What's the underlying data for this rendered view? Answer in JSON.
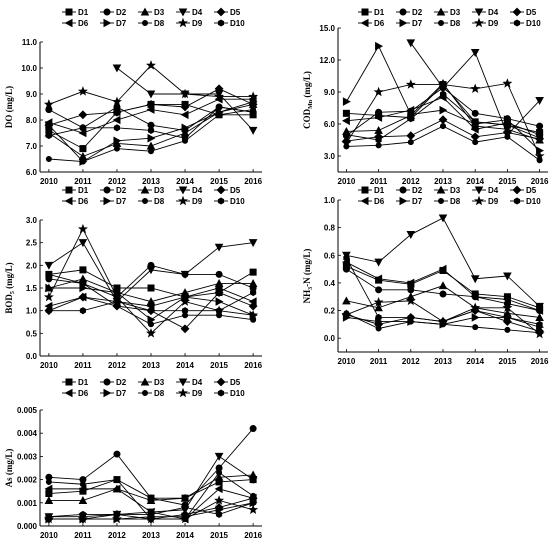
{
  "chart_data": [
    {
      "type": "line",
      "ylabel": "DO (mg/L)",
      "x": [
        2010,
        2011,
        2012,
        2013,
        2014,
        2015,
        2016
      ],
      "ylim": [
        6.0,
        11.0
      ],
      "yticks": [
        "6.0",
        "7.0",
        "8.0",
        "9.0",
        "10.0",
        "11.0"
      ],
      "legend_position": "top",
      "series": [
        {
          "name": "D1",
          "marker": "square",
          "values": [
            7.6,
            6.9,
            8.3,
            8.6,
            8.6,
            8.2,
            8.2
          ]
        },
        {
          "name": "D2",
          "marker": "circle",
          "values": [
            8.4,
            7.7,
            8.5,
            7.8,
            7.6,
            8.5,
            8.3
          ]
        },
        {
          "name": "D3",
          "marker": "triangle-up",
          "values": [
            7.5,
            6.6,
            7.1,
            7.0,
            7.5,
            8.3,
            8.6
          ]
        },
        {
          "name": "D4",
          "marker": "triangle-down",
          "values": [
            null,
            null,
            10.0,
            9.0,
            9.0,
            9.0,
            7.6
          ]
        },
        {
          "name": "D5",
          "marker": "diamond",
          "values": [
            7.8,
            8.2,
            8.3,
            8.6,
            8.5,
            9.2,
            8.6
          ]
        },
        {
          "name": "D6",
          "marker": "triangle-left",
          "values": [
            7.9,
            7.5,
            8.0,
            8.4,
            8.2,
            8.8,
            8.8
          ]
        },
        {
          "name": "D7",
          "marker": "triangle-right",
          "values": [
            7.8,
            6.4,
            7.2,
            7.3,
            7.7,
            8.3,
            8.7
          ]
        },
        {
          "name": "D8",
          "marker": "circle-small",
          "values": [
            6.5,
            6.4,
            6.9,
            6.8,
            7.2,
            8.2,
            8.4
          ]
        },
        {
          "name": "D9",
          "marker": "star",
          "values": [
            8.6,
            9.1,
            8.7,
            10.1,
            9.0,
            8.9,
            8.9
          ]
        },
        {
          "name": "D10",
          "marker": "hexagon",
          "values": [
            7.4,
            7.7,
            7.7,
            7.6,
            7.3,
            8.5,
            8.3
          ]
        }
      ]
    },
    {
      "type": "line",
      "ylabel": "COD_Mn (mg/L)",
      "x": [
        2010,
        2011,
        2012,
        2013,
        2014,
        2015,
        2016
      ],
      "ylim": [
        1.5,
        15.0
      ],
      "yticks": [
        "3.0",
        "6.0",
        "9.0",
        "12.0",
        "15.0"
      ],
      "legend_position": "top",
      "series": [
        {
          "name": "D1",
          "marker": "square",
          "values": [
            7.0,
            6.8,
            6.6,
            9.7,
            6.2,
            5.9,
            5.2
          ]
        },
        {
          "name": "D2",
          "marker": "circle",
          "values": [
            4.9,
            7.1,
            7.2,
            9.4,
            7.0,
            6.5,
            5.8
          ]
        },
        {
          "name": "D3",
          "marker": "triangle-up",
          "values": [
            5.3,
            5.4,
            6.8,
            9.8,
            5.8,
            5.5,
            4.5
          ]
        },
        {
          "name": "D4",
          "marker": "triangle-down",
          "values": [
            null,
            null,
            13.6,
            9.4,
            12.7,
            5.0,
            8.2
          ]
        },
        {
          "name": "D5",
          "marker": "diamond",
          "values": [
            4.4,
            4.8,
            4.9,
            6.4,
            4.8,
            5.2,
            4.6
          ]
        },
        {
          "name": "D6",
          "marker": "triangle-left",
          "values": [
            6.3,
            6.6,
            7.3,
            8.5,
            5.5,
            6.1,
            5.0
          ]
        },
        {
          "name": "D7",
          "marker": "triangle-right",
          "values": [
            8.1,
            13.3,
            6.9,
            7.3,
            6.0,
            6.4,
            3.5
          ]
        },
        {
          "name": "D8",
          "marker": "circle-small",
          "values": [
            3.9,
            4.0,
            4.3,
            5.8,
            4.3,
            4.8,
            2.6
          ]
        },
        {
          "name": "D9",
          "marker": "star",
          "values": [
            4.2,
            9.0,
            9.7,
            9.7,
            9.3,
            9.8,
            3.0
          ]
        },
        {
          "name": "D10",
          "marker": "hexagon",
          "values": [
            5.0,
            4.5,
            6.5,
            8.8,
            6.2,
            5.9,
            4.7
          ]
        }
      ]
    },
    {
      "type": "line",
      "ylabel": "BOD5 (mg/L)",
      "x": [
        2010,
        2011,
        2012,
        2013,
        2014,
        2015,
        2016
      ],
      "ylim": [
        0.0,
        3.0
      ],
      "yticks": [
        "0.0",
        "0.5",
        "1.0",
        "1.5",
        "2.0",
        "2.5",
        "3.0"
      ],
      "legend_position": "top",
      "series": [
        {
          "name": "D1",
          "marker": "square",
          "values": [
            1.8,
            1.9,
            1.5,
            1.5,
            1.3,
            1.4,
            1.85
          ]
        },
        {
          "name": "D2",
          "marker": "circle",
          "values": [
            1.7,
            1.6,
            1.3,
            2.0,
            1.8,
            1.8,
            1.5
          ]
        },
        {
          "name": "D3",
          "marker": "triangle-up",
          "values": [
            1.5,
            1.7,
            1.4,
            1.2,
            1.4,
            1.6,
            1.6
          ]
        },
        {
          "name": "D4",
          "marker": "triangle-down",
          "values": [
            2.0,
            2.5,
            1.2,
            1.9,
            1.8,
            2.4,
            2.5
          ]
        },
        {
          "name": "D5",
          "marker": "diamond",
          "values": [
            1.0,
            1.3,
            1.1,
            1.0,
            0.6,
            1.4,
            1.1
          ]
        },
        {
          "name": "D6",
          "marker": "triangle-left",
          "values": [
            1.1,
            1.3,
            1.2,
            1.1,
            1.3,
            1.5,
            1.2
          ]
        },
        {
          "name": "D7",
          "marker": "triangle-right",
          "values": [
            1.5,
            1.5,
            1.4,
            0.8,
            1.3,
            1.2,
            0.9
          ]
        },
        {
          "name": "D8",
          "marker": "circle-small",
          "values": [
            1.8,
            1.6,
            1.1,
            0.7,
            0.9,
            0.9,
            0.8
          ]
        },
        {
          "name": "D9",
          "marker": "star",
          "values": [
            1.3,
            2.8,
            1.3,
            0.5,
            1.2,
            1.0,
            0.9
          ]
        },
        {
          "name": "D10",
          "marker": "hexagon",
          "values": [
            1.0,
            1.0,
            1.2,
            1.0,
            1.0,
            1.0,
            1.4
          ]
        }
      ]
    },
    {
      "type": "line",
      "ylabel": "NH3-N (mg/L)",
      "x": [
        2010,
        2011,
        2012,
        2013,
        2014,
        2015,
        2016
      ],
      "ylim": [
        -0.1,
        1.0
      ],
      "yticks": [
        "0.0",
        "0.2",
        "0.4",
        "0.6",
        "0.8",
        "1.0"
      ],
      "legend_position": "top",
      "series": [
        {
          "name": "D1",
          "marker": "square",
          "values": [
            0.52,
            0.42,
            0.39,
            0.49,
            0.32,
            0.3,
            0.22
          ]
        },
        {
          "name": "D2",
          "marker": "circle",
          "values": [
            0.5,
            0.35,
            0.35,
            0.32,
            0.3,
            0.25,
            0.2
          ]
        },
        {
          "name": "D3",
          "marker": "triangle-up",
          "values": [
            0.27,
            0.22,
            0.3,
            0.38,
            0.22,
            0.18,
            0.15
          ]
        },
        {
          "name": "D4",
          "marker": "triangle-down",
          "values": [
            0.6,
            0.55,
            0.75,
            0.87,
            0.43,
            0.45,
            0.23
          ]
        },
        {
          "name": "D5",
          "marker": "diamond",
          "values": [
            0.17,
            0.1,
            0.15,
            0.12,
            0.2,
            0.12,
            0.05
          ]
        },
        {
          "name": "D6",
          "marker": "triangle-left",
          "values": [
            0.55,
            0.43,
            0.4,
            0.5,
            0.3,
            0.28,
            0.2
          ]
        },
        {
          "name": "D7",
          "marker": "triangle-right",
          "values": [
            0.15,
            0.12,
            0.12,
            0.1,
            0.15,
            0.15,
            0.08
          ]
        },
        {
          "name": "D8",
          "marker": "circle-small",
          "values": [
            0.18,
            0.07,
            0.12,
            0.1,
            0.08,
            0.06,
            0.04
          ]
        },
        {
          "name": "D9",
          "marker": "star",
          "values": [
            0.17,
            0.26,
            0.27,
            0.12,
            0.22,
            0.22,
            0.03
          ]
        },
        {
          "name": "D10",
          "marker": "hexagon",
          "values": [
            0.58,
            0.15,
            0.15,
            0.12,
            0.2,
            0.15,
            0.1
          ]
        }
      ]
    },
    {
      "type": "line",
      "ylabel": "As (mg/L)",
      "x": [
        2010,
        2011,
        2012,
        2013,
        2014,
        2015,
        2016
      ],
      "ylim": [
        0.0,
        0.005
      ],
      "yticks": [
        "0.000",
        "0.001",
        "0.002",
        "0.003",
        "0.004",
        "0.005"
      ],
      "legend_position": "top",
      "series": [
        {
          "name": "D1",
          "marker": "square",
          "values": [
            0.0014,
            0.0015,
            0.002,
            0.0012,
            0.0012,
            0.0019,
            0.002
          ]
        },
        {
          "name": "D2",
          "marker": "circle",
          "values": [
            0.0021,
            0.002,
            0.0031,
            0.0012,
            0.0009,
            0.0025,
            0.0042
          ]
        },
        {
          "name": "D3",
          "marker": "triangle-up",
          "values": [
            0.0011,
            0.0011,
            0.0016,
            0.0011,
            0.0012,
            0.0021,
            0.0022
          ]
        },
        {
          "name": "D4",
          "marker": "triangle-down",
          "values": [
            0.0004,
            0.0004,
            0.0005,
            0.0006,
            0.0007,
            0.003,
            0.002
          ]
        },
        {
          "name": "D5",
          "marker": "diamond",
          "values": [
            0.0003,
            0.0003,
            0.0005,
            0.0003,
            0.0005,
            0.0008,
            0.0012
          ]
        },
        {
          "name": "D6",
          "marker": "triangle-left",
          "values": [
            0.0016,
            0.0016,
            0.0016,
            0.0006,
            0.0003,
            0.0016,
            0.0012
          ]
        },
        {
          "name": "D7",
          "marker": "triangle-right",
          "values": [
            0.0003,
            0.0003,
            0.0003,
            0.0004,
            0.0004,
            0.0007,
            0.001
          ]
        },
        {
          "name": "D8",
          "marker": "circle-small",
          "values": [
            0.0019,
            0.0018,
            0.002,
            0.0003,
            0.0003,
            0.0023,
            0.0013
          ]
        },
        {
          "name": "D9",
          "marker": "star",
          "values": [
            0.0003,
            0.0003,
            0.0003,
            0.0003,
            0.0003,
            0.0011,
            0.0007
          ]
        },
        {
          "name": "D10",
          "marker": "hexagon",
          "values": [
            0.0004,
            0.0005,
            0.0005,
            0.0005,
            0.0008,
            0.0005,
            0.001
          ]
        }
      ]
    }
  ]
}
